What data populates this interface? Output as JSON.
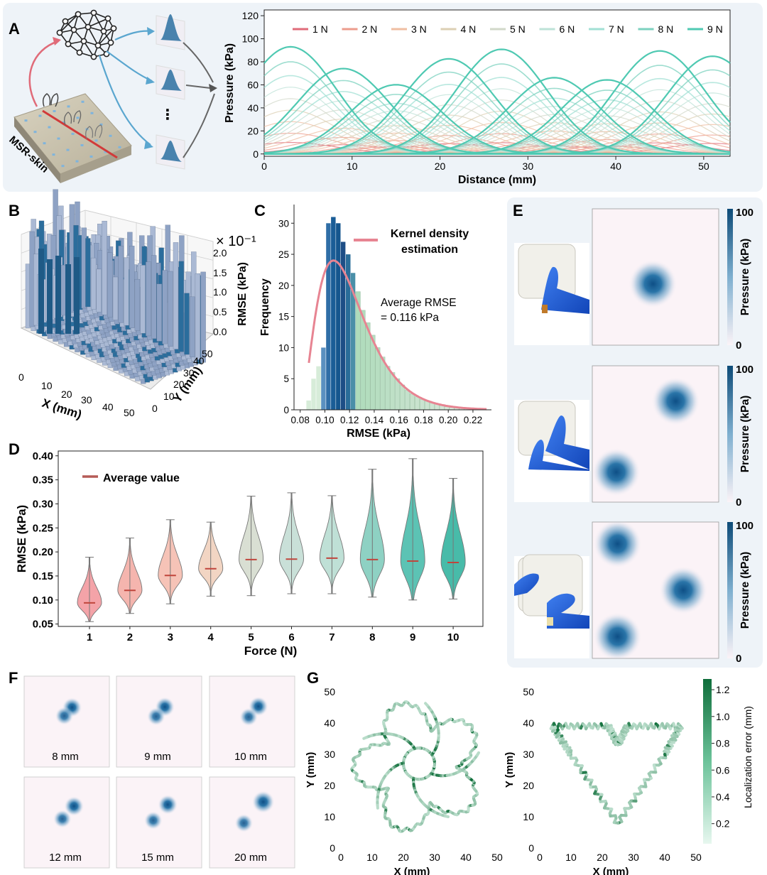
{
  "panels": {
    "A": "A",
    "B": "B",
    "C": "C",
    "D": "D",
    "E": "E",
    "F": "F",
    "G": "G"
  },
  "colors": {
    "forces": [
      "#e06b79",
      "#ec9c8c",
      "#efbea2",
      "#dccfb3",
      "#d2d8c9",
      "#bde2d7",
      "#a2e0d4",
      "#7cd1bf",
      "#4fc9b2"
    ],
    "blue_dark": "#1b5f8c",
    "blue_mid": "#4a8bb8",
    "red_line": "#e78492",
    "green_dark": "#1f7a4a"
  },
  "panel_A": {
    "skin_label": "MSR-skin",
    "ellipsis": "•\n•\n•",
    "chart_data": {
      "type": "line",
      "xlabel": "Distance (mm)",
      "ylabel": "Pressure (kPa)",
      "xlim": [
        0,
        53
      ],
      "ylim": [
        -2,
        125
      ],
      "xticks": [
        0,
        10,
        20,
        30,
        40,
        50
      ],
      "yticks": [
        0,
        20,
        40,
        60,
        80,
        100,
        120
      ],
      "peak_centers_mm": [
        3,
        9,
        15,
        21,
        27,
        33,
        39,
        45,
        51
      ],
      "series": [
        {
          "name": "1 N",
          "peak": 10
        },
        {
          "name": "2 N",
          "peak": 18
        },
        {
          "name": "3 N",
          "peak": 28
        },
        {
          "name": "4 N",
          "peak": 38
        },
        {
          "name": "5 N",
          "peak": 48
        },
        {
          "name": "6 N",
          "peak": 58
        },
        {
          "name": "7 N",
          "peak": 68
        },
        {
          "name": "8 N",
          "peak": 80
        },
        {
          "name": "9 N",
          "peak": 93
        }
      ],
      "legend": "top"
    }
  },
  "panel_B": {
    "chart_data": {
      "type": "3d-bar",
      "xlabel": "X (mm)",
      "ylabel": "Y (mm)",
      "zlabel": "RMSE (kPa)",
      "z_multiplier": "× 10⁻¹",
      "xticks": [
        "0",
        "10",
        "20",
        "30",
        "40",
        "50"
      ],
      "yticks": [
        "0",
        "10",
        "20",
        "30",
        "40",
        "50"
      ],
      "zticks": [
        "0.0",
        "0.5",
        "1.0",
        "1.5",
        "2.0"
      ]
    }
  },
  "panel_C": {
    "chart_data": {
      "type": "bar",
      "xlabel": "RMSE (kPa)",
      "ylabel": "Frequency",
      "xlim": [
        0.075,
        0.235
      ],
      "ylim": [
        0,
        33
      ],
      "xticks": [
        "0.08",
        "0.10",
        "0.12",
        "0.14",
        "0.16",
        "0.18",
        "0.20",
        "0.22"
      ],
      "yticks": [
        "0",
        "5",
        "10",
        "15",
        "20",
        "25",
        "30"
      ],
      "bin_start": 0.085,
      "bin_width": 0.004,
      "values": [
        1.5,
        5,
        7,
        10,
        30,
        31,
        30,
        27,
        25,
        22,
        19,
        16,
        14,
        12,
        10,
        8.5,
        7,
        6,
        5,
        4,
        3.2,
        2.6,
        2.1,
        1.7,
        1.4,
        1.1,
        0.9,
        0.7,
        0.5,
        0.4,
        0.3,
        0.25,
        0.2,
        0.15,
        0.1
      ],
      "legend": "Kernel density\nestimation",
      "annotation": "Average RMSE\n= 0.116 kPa"
    }
  },
  "panel_D": {
    "chart_data": {
      "type": "violin",
      "xlabel": "Force (N)",
      "ylabel": "RMSE (kPa)",
      "ylim": [
        0.045,
        0.41
      ],
      "yticks": [
        "0.05",
        "0.10",
        "0.15",
        "0.20",
        "0.25",
        "0.30",
        "0.35",
        "0.40"
      ],
      "categories": [
        "1",
        "2",
        "3",
        "4",
        "5",
        "6",
        "7",
        "8",
        "9",
        "10"
      ],
      "min": [
        0.055,
        0.072,
        0.092,
        0.108,
        0.109,
        0.113,
        0.113,
        0.106,
        0.1,
        0.102
      ],
      "max": [
        0.189,
        0.229,
        0.267,
        0.262,
        0.316,
        0.323,
        0.317,
        0.372,
        0.394,
        0.353
      ],
      "mean": [
        0.094,
        0.12,
        0.151,
        0.165,
        0.184,
        0.185,
        0.187,
        0.184,
        0.181,
        0.178
      ],
      "legend": "Average value"
    }
  },
  "panel_E": {
    "colorbar_label": "Pressure (kPa)",
    "cb_max": "100",
    "cb_min": "0",
    "maps": [
      {
        "spots": [
          [
            0.48,
            0.55
          ]
        ]
      },
      {
        "spots": [
          [
            0.66,
            0.26
          ],
          [
            0.19,
            0.78
          ]
        ]
      },
      {
        "spots": [
          [
            0.2,
            0.16
          ],
          [
            0.72,
            0.5
          ],
          [
            0.2,
            0.84
          ]
        ]
      }
    ]
  },
  "panel_F": {
    "labels": [
      "8 mm",
      "9 mm",
      "10 mm",
      "12 mm",
      "15 mm",
      "20 mm"
    ]
  },
  "panel_G": {
    "chart_data": {
      "type": "scatter",
      "xlabel": "X (mm)",
      "ylabel": "Y (mm)",
      "xticks": [
        "0",
        "10",
        "20",
        "30",
        "40",
        "50"
      ],
      "yticks": [
        "0",
        "10",
        "20",
        "30",
        "40",
        "50"
      ],
      "colorbar_label": "Localization error (mm)",
      "cb_ticks": [
        "0.2",
        "0.4",
        "0.6",
        "0.8",
        "1.0",
        "1.2"
      ]
    }
  }
}
